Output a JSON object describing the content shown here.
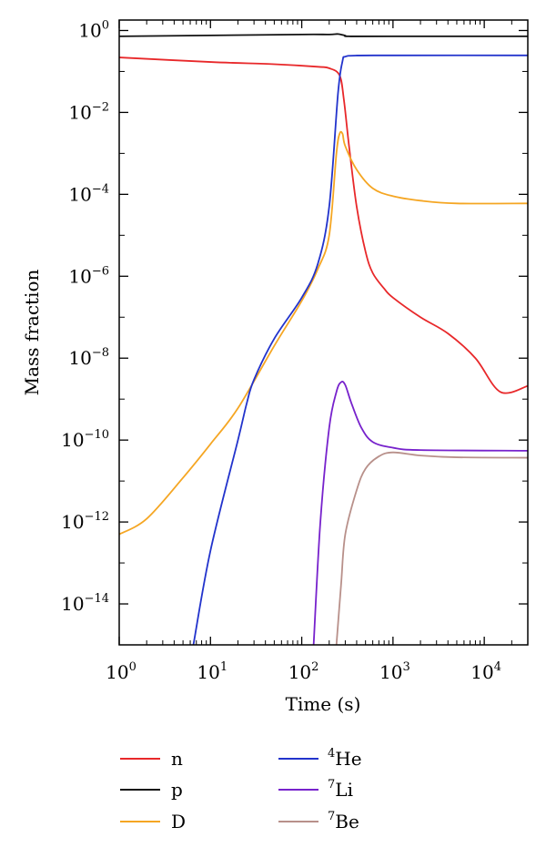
{
  "chart_data": {
    "type": "line",
    "title": "",
    "xlabel": "Time (s)",
    "ylabel": "Mass fraction",
    "x_scale": "log",
    "y_scale": "log",
    "xlim": [
      1,
      30000
    ],
    "ylim": [
      1e-15,
      1.8
    ],
    "x_ticks": [
      {
        "value": 1,
        "base": "10",
        "exp": "0"
      },
      {
        "value": 10,
        "base": "10",
        "exp": "1"
      },
      {
        "value": 100,
        "base": "10",
        "exp": "2"
      },
      {
        "value": 1000,
        "base": "10",
        "exp": "3"
      },
      {
        "value": 10000,
        "base": "10",
        "exp": "4"
      }
    ],
    "y_ticks": [
      {
        "value": 1,
        "base": "10",
        "exp": "0"
      },
      {
        "value": 0.01,
        "base": "10",
        "exp": "−2"
      },
      {
        "value": 0.0001,
        "base": "10",
        "exp": "−4"
      },
      {
        "value": 1e-06,
        "base": "10",
        "exp": "−6"
      },
      {
        "value": 1e-08,
        "base": "10",
        "exp": "−8"
      },
      {
        "value": 1e-10,
        "base": "10",
        "exp": "−10"
      },
      {
        "value": 1e-12,
        "base": "10",
        "exp": "−12"
      },
      {
        "value": 1e-14,
        "base": "10",
        "exp": "−14"
      }
    ],
    "grid": false,
    "legend_position": "bottom",
    "series": [
      {
        "name": "n",
        "sup": "",
        "color": "#e8282a",
        "points": [
          [
            1,
            0.22
          ],
          [
            10,
            0.17
          ],
          [
            50,
            0.15
          ],
          [
            150,
            0.13
          ],
          [
            200,
            0.12
          ],
          [
            260,
            0.08
          ],
          [
            290,
            0.02
          ],
          [
            330,
            0.0015
          ],
          [
            400,
            5e-05
          ],
          [
            500,
            4e-06
          ],
          [
            600,
            1.2e-06
          ],
          [
            800,
            5e-07
          ],
          [
            1000,
            3e-07
          ],
          [
            2000,
            1e-07
          ],
          [
            4000,
            4e-08
          ],
          [
            8000,
            1e-08
          ],
          [
            15000,
            1.5e-09
          ],
          [
            30000,
            2.1e-09
          ]
        ]
      },
      {
        "name": "p",
        "sup": "",
        "color": "#111111",
        "points": [
          [
            1,
            0.72
          ],
          [
            10,
            0.76
          ],
          [
            100,
            0.8
          ],
          [
            200,
            0.8
          ],
          [
            250,
            0.82
          ],
          [
            300,
            0.75
          ],
          [
            330,
            0.72
          ],
          [
            1000,
            0.72
          ],
          [
            30000,
            0.72
          ]
        ]
      },
      {
        "name": "D",
        "sup": "",
        "color": "#f5a623",
        "points": [
          [
            1,
            5e-13
          ],
          [
            2,
            1.2e-12
          ],
          [
            5,
            1.2e-11
          ],
          [
            10,
            8e-11
          ],
          [
            20,
            6e-10
          ],
          [
            50,
            2e-08
          ],
          [
            100,
            2.5e-07
          ],
          [
            150,
            1.5e-06
          ],
          [
            200,
            1e-05
          ],
          [
            240,
            0.001
          ],
          [
            260,
            0.003
          ],
          [
            280,
            0.003
          ],
          [
            300,
            0.0015
          ],
          [
            400,
            0.0004
          ],
          [
            600,
            0.00014
          ],
          [
            1000,
            9e-05
          ],
          [
            2000,
            7e-05
          ],
          [
            5000,
            6e-05
          ],
          [
            30000,
            6e-05
          ]
        ]
      },
      {
        "name": "He",
        "sup": "4",
        "color": "#2233cc",
        "points": [
          [
            6.5,
            1e-15
          ],
          [
            10,
            2e-13
          ],
          [
            20,
            1e-10
          ],
          [
            25,
            8e-10
          ],
          [
            30,
            3e-09
          ],
          [
            50,
            3e-08
          ],
          [
            100,
            3e-07
          ],
          [
            150,
            2e-06
          ],
          [
            200,
            5e-05
          ],
          [
            250,
            0.03
          ],
          [
            280,
            0.18
          ],
          [
            300,
            0.23
          ],
          [
            400,
            0.245
          ],
          [
            1000,
            0.247
          ],
          [
            30000,
            0.247
          ]
        ]
      },
      {
        "name": "Li",
        "sup": "7",
        "color": "#7722cc",
        "points": [
          [
            135,
            1e-15
          ],
          [
            160,
            1e-12
          ],
          [
            200,
            2e-10
          ],
          [
            240,
            1.5e-09
          ],
          [
            270,
            2.6e-09
          ],
          [
            300,
            2.2e-09
          ],
          [
            350,
            8e-10
          ],
          [
            450,
            2e-10
          ],
          [
            600,
            9e-11
          ],
          [
            1000,
            6.5e-11
          ],
          [
            2000,
            5.7e-11
          ],
          [
            30000,
            5.5e-11
          ]
        ]
      },
      {
        "name": "Be",
        "sup": "7",
        "color": "#b8908a",
        "points": [
          [
            240,
            1e-15
          ],
          [
            270,
            3e-14
          ],
          [
            300,
            5e-13
          ],
          [
            400,
            6e-12
          ],
          [
            500,
            2e-11
          ],
          [
            700,
            4e-11
          ],
          [
            1000,
            5e-11
          ],
          [
            2000,
            4.2e-11
          ],
          [
            5000,
            3.8e-11
          ],
          [
            30000,
            3.7e-11
          ]
        ]
      }
    ]
  }
}
